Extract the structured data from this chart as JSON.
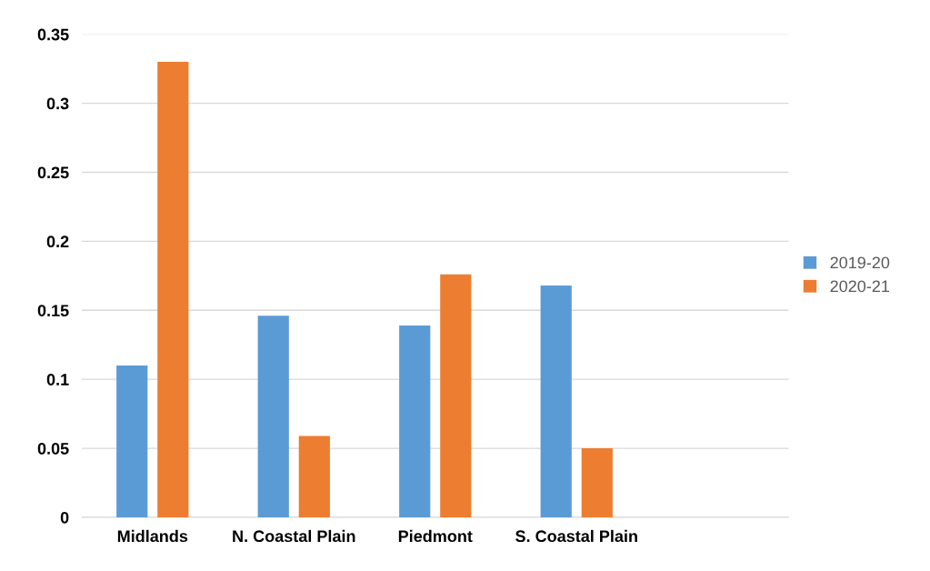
{
  "chart_data": {
    "type": "bar",
    "categories": [
      "Midlands",
      "N. Coastal Plain",
      "Piedmont",
      "S. Coastal Plain",
      null
    ],
    "series": [
      {
        "name": "2019-20",
        "color": "#5b9bd5",
        "values": [
          0.11,
          0.146,
          0.139,
          0.168,
          null
        ]
      },
      {
        "name": "2020-21",
        "color": "#ed7d31",
        "values": [
          0.33,
          0.059,
          0.176,
          0.05,
          null
        ]
      }
    ],
    "ylim": [
      0,
      0.35
    ],
    "yticks": [
      0,
      0.05,
      0.1,
      0.15,
      0.2,
      0.25,
      0.3,
      0.35
    ],
    "grid": "y",
    "legend": "right"
  }
}
